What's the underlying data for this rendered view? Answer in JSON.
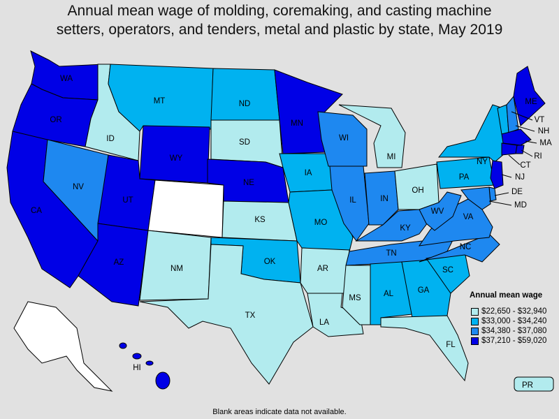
{
  "title_line1": "Annual mean wage of molding, coremaking, and casting machine",
  "title_line2": "setters, operators, and tenders, metal and plastic by state, May 2019",
  "legend": {
    "title": "Annual mean wage",
    "bins": [
      {
        "label": "$22,650 - $32,940",
        "color": "#b2ebee"
      },
      {
        "label": "$33,000 - $34,240",
        "color": "#00b2f0"
      },
      {
        "label": "$34,380 - $37,080",
        "color": "#1e88f0"
      },
      {
        "label": "$37,210 - $59,020",
        "color": "#0000e6"
      }
    ]
  },
  "no_data_color": "#ffffff",
  "footnote": "Blank areas indicate data not available.",
  "states": {
    "WA": {
      "label": "WA",
      "bin": 3
    },
    "OR": {
      "label": "OR",
      "bin": 3
    },
    "CA": {
      "label": "CA",
      "bin": 3
    },
    "ID": {
      "label": "ID",
      "bin": 0
    },
    "NV": {
      "label": "NV",
      "bin": 2
    },
    "MT": {
      "label": "MT",
      "bin": 1
    },
    "WY": {
      "label": "WY",
      "bin": 3
    },
    "UT": {
      "label": "UT",
      "bin": 3
    },
    "AZ": {
      "label": "AZ",
      "bin": 3
    },
    "CO": {
      "label": "",
      "bin": null
    },
    "NM": {
      "label": "NM",
      "bin": 0
    },
    "ND": {
      "label": "ND",
      "bin": 1
    },
    "SD": {
      "label": "SD",
      "bin": 0
    },
    "NE": {
      "label": "NE",
      "bin": 3
    },
    "KS": {
      "label": "KS",
      "bin": 0
    },
    "OK": {
      "label": "OK",
      "bin": 1
    },
    "TX": {
      "label": "TX",
      "bin": 0
    },
    "MN": {
      "label": "MN",
      "bin": 3
    },
    "IA": {
      "label": "IA",
      "bin": 1
    },
    "MO": {
      "label": "MO",
      "bin": 1
    },
    "AR": {
      "label": "AR",
      "bin": 0
    },
    "LA": {
      "label": "LA",
      "bin": 0
    },
    "WI": {
      "label": "WI",
      "bin": 2
    },
    "IL": {
      "label": "IL",
      "bin": 2
    },
    "MI": {
      "label": "MI",
      "bin": 0
    },
    "IN": {
      "label": "IN",
      "bin": 2
    },
    "OH": {
      "label": "OH",
      "bin": 0
    },
    "KY": {
      "label": "KY",
      "bin": 2
    },
    "TN": {
      "label": "TN",
      "bin": 2
    },
    "MS": {
      "label": "MS",
      "bin": 0
    },
    "AL": {
      "label": "AL",
      "bin": 1
    },
    "GA": {
      "label": "GA",
      "bin": 1
    },
    "FL": {
      "label": "FL",
      "bin": 0
    },
    "SC": {
      "label": "SC",
      "bin": 1
    },
    "NC": {
      "label": "NC",
      "bin": 2
    },
    "VA": {
      "label": "VA",
      "bin": 2
    },
    "WV": {
      "label": "WV",
      "bin": 2
    },
    "PA": {
      "label": "PA",
      "bin": 1
    },
    "NY": {
      "label": "NY",
      "bin": 1
    },
    "VT": {
      "label": "VT",
      "bin": 1
    },
    "NH": {
      "label": "NH",
      "bin": 2
    },
    "ME": {
      "label": "ME",
      "bin": 3
    },
    "MA": {
      "label": "MA",
      "bin": 3
    },
    "RI": {
      "label": "RI",
      "bin": 3
    },
    "CT": {
      "label": "CT",
      "bin": 3
    },
    "NJ": {
      "label": "NJ",
      "bin": 3
    },
    "DE": {
      "label": "DE",
      "bin": 2
    },
    "MD": {
      "label": "MD",
      "bin": 2
    },
    "AK": {
      "label": "",
      "bin": null
    },
    "HI": {
      "label": "HI",
      "bin": 3
    },
    "PR": {
      "label": "PR",
      "bin": 0
    }
  }
}
